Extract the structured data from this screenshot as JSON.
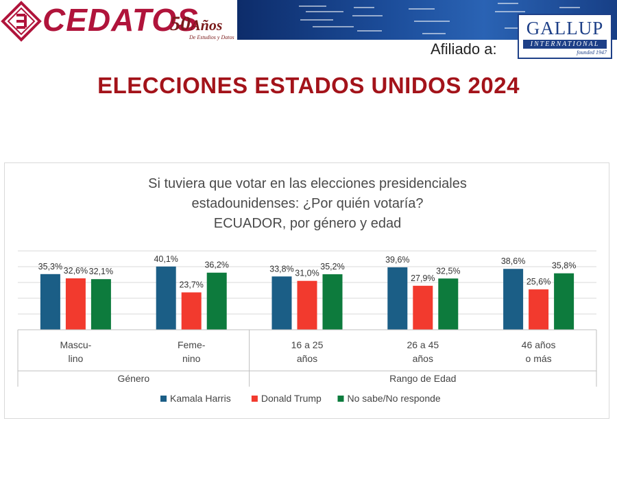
{
  "header": {
    "logo_text": "CEDATOS",
    "logo_50": "50",
    "logo_anos": "Años",
    "logo_sub": "De Estudios y Datos",
    "affiliated_label": "Afiliado a:",
    "gallup_name": "GALLUP",
    "gallup_sub": "INTERNATIONAL",
    "gallup_founded": "founded 1947"
  },
  "headline": "ELECCIONES ESTADOS UNIDOS 2024",
  "chart_data": {
    "type": "bar",
    "title_lines": [
      "Si tuviera que votar en las elecciones presidenciales",
      "estadounidenses: ¿Por quién votaría?",
      "ECUADOR, por género y edad"
    ],
    "categories": [
      {
        "lines": [
          "Mascu-",
          "lino"
        ],
        "group": "Género"
      },
      {
        "lines": [
          "Feme-",
          "nino"
        ],
        "group": "Género"
      },
      {
        "lines": [
          "16 a 25",
          "años"
        ],
        "group": "Rango de Edad"
      },
      {
        "lines": [
          "26 a 45",
          "años"
        ],
        "group": "Rango de Edad"
      },
      {
        "lines": [
          "46 años",
          "o más"
        ],
        "group": "Rango de Edad"
      }
    ],
    "groups": [
      "Género",
      "Rango de Edad"
    ],
    "series": [
      {
        "name": "Kamala Harris",
        "color": "#1b5e86",
        "values": [
          35.3,
          40.1,
          33.8,
          39.6,
          38.6
        ],
        "labels": [
          "35,3%",
          "40,1%",
          "33,8%",
          "39,6%",
          "38,6%"
        ]
      },
      {
        "name": "Donald Trump",
        "color": "#f23a2e",
        "values": [
          32.6,
          23.7,
          31.0,
          27.9,
          25.6
        ],
        "labels": [
          "32,6%",
          "23,7%",
          "31,0%",
          "27,9%",
          "25,6%"
        ]
      },
      {
        "name": "No sabe/No responde",
        "color": "#0d7b3d",
        "values": [
          32.1,
          36.2,
          35.2,
          32.5,
          35.8
        ],
        "labels": [
          "32,1%",
          "36,2%",
          "35,2%",
          "32,5%",
          "35,8%"
        ]
      }
    ],
    "ylim": [
      0,
      50
    ],
    "grid": true,
    "legend": "bottom"
  }
}
